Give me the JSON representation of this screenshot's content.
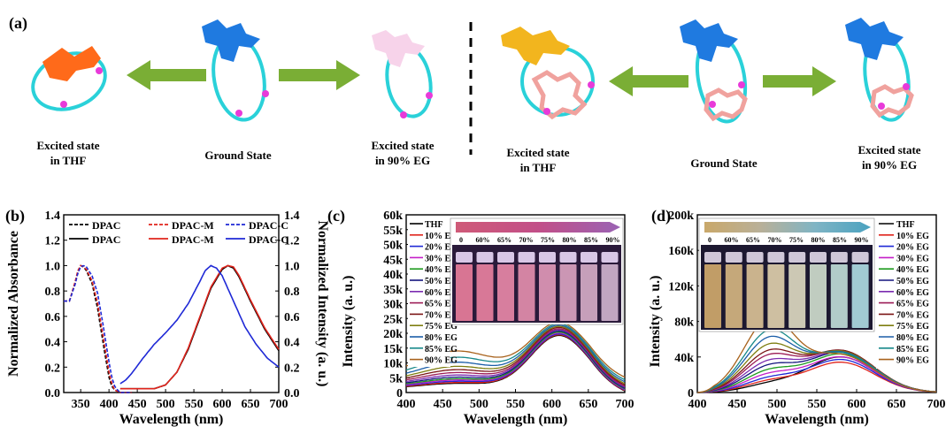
{
  "panel_a": {
    "label": "(a)",
    "captions_left": [
      "Excited state\nin THF",
      "Ground State",
      "Excited state\nin 90% EG"
    ],
    "captions_right": [
      "Excited state\nin THF",
      "Ground State",
      "Excited state\nin 90% EG"
    ]
  },
  "chart_data": [
    {
      "panel": "(b)",
      "type": "line",
      "xlabel": "Wavelength (nm)",
      "ylabel": "Normalized Absorbance",
      "y2label": "Normalized Intensity (a. u.)",
      "xlim": [
        320,
        700
      ],
      "ylim": [
        0,
        1.4
      ],
      "x_ticks": [
        350,
        400,
        450,
        500,
        550,
        600,
        650,
        700
      ],
      "y_ticks": [
        "0.0",
        "0.2",
        "0.4",
        "0.6",
        "0.8",
        "1.0",
        "1.2",
        "1.4"
      ],
      "legend_position": "top",
      "series": [
        {
          "name": "DPAC",
          "kind": "absorbance",
          "style": "dashed",
          "color": "#000000",
          "x": [
            320,
            330,
            340,
            345,
            350,
            355,
            360,
            370,
            380,
            390,
            400,
            405,
            410,
            420,
            440
          ],
          "y": [
            0.72,
            0.72,
            0.86,
            0.95,
            1.0,
            0.99,
            0.96,
            0.86,
            0.66,
            0.38,
            0.12,
            0.05,
            0.02,
            0.0,
            0.0
          ]
        },
        {
          "name": "DPAC-M",
          "kind": "absorbance",
          "style": "dashed",
          "color": "#e0241c",
          "x": [
            320,
            330,
            340,
            345,
            350,
            355,
            360,
            370,
            380,
            390,
            400,
            405,
            410,
            420,
            440
          ],
          "y": [
            0.72,
            0.72,
            0.87,
            0.96,
            1.0,
            0.99,
            0.97,
            0.88,
            0.7,
            0.43,
            0.16,
            0.07,
            0.02,
            0.0,
            0.0
          ]
        },
        {
          "name": "DPAC-C",
          "kind": "absorbance",
          "style": "dashed",
          "color": "#1f29d6",
          "x": [
            320,
            330,
            340,
            345,
            350,
            355,
            360,
            370,
            380,
            390,
            400,
            405,
            410,
            415,
            420,
            440
          ],
          "y": [
            0.72,
            0.72,
            0.85,
            0.94,
            0.99,
            1.0,
            0.99,
            0.92,
            0.78,
            0.52,
            0.24,
            0.12,
            0.05,
            0.02,
            0.0,
            0.0
          ]
        },
        {
          "name": "DPAC",
          "kind": "emission",
          "style": "solid",
          "color": "#000000",
          "x": [
            420,
            450,
            480,
            500,
            520,
            540,
            560,
            580,
            600,
            610,
            620,
            630,
            650,
            675,
            700
          ],
          "y": [
            0.03,
            0.03,
            0.03,
            0.06,
            0.16,
            0.34,
            0.58,
            0.82,
            0.97,
            1.0,
            0.98,
            0.91,
            0.72,
            0.5,
            0.33
          ]
        },
        {
          "name": "DPAC-M",
          "kind": "emission",
          "style": "solid",
          "color": "#e0241c",
          "x": [
            420,
            450,
            480,
            500,
            520,
            540,
            560,
            580,
            600,
            610,
            620,
            630,
            650,
            675,
            700
          ],
          "y": [
            0.03,
            0.03,
            0.03,
            0.06,
            0.16,
            0.35,
            0.59,
            0.83,
            0.98,
            1.0,
            0.99,
            0.92,
            0.73,
            0.51,
            0.34
          ]
        },
        {
          "name": "DPAC-C",
          "kind": "emission",
          "style": "solid",
          "color": "#1f29d6",
          "x": [
            420,
            430,
            440,
            460,
            480,
            500,
            520,
            540,
            560,
            570,
            580,
            590,
            600,
            620,
            640,
            660,
            680,
            700
          ],
          "y": [
            0.07,
            0.1,
            0.15,
            0.27,
            0.38,
            0.47,
            0.57,
            0.7,
            0.87,
            0.96,
            1.0,
            0.98,
            0.92,
            0.72,
            0.52,
            0.38,
            0.27,
            0.2
          ]
        }
      ]
    },
    {
      "panel": "(c)",
      "type": "line",
      "xlabel": "Wavelength (nm)",
      "ylabel": "Intensity (a. u.)",
      "xlim": [
        400,
        700
      ],
      "ylim": [
        0,
        60000
      ],
      "x_ticks": [
        400,
        450,
        500,
        550,
        600,
        650,
        700
      ],
      "y_ticks": [
        "0",
        "5k",
        "10k",
        "15k",
        "20k",
        "25k",
        "30k",
        "35k",
        "40k",
        "45k",
        "50k",
        "55k",
        "60k"
      ],
      "legend_position": "left",
      "inset": {
        "scale": [
          "0",
          "60%",
          "65%",
          "70%",
          "75%",
          "80%",
          "85%",
          "90%"
        ],
        "gradient": [
          "#cf5a78",
          "#c24f88",
          "#9a63b4"
        ],
        "vial_colors": [
          "#e27a98",
          "#e27d9c",
          "#e084a3",
          "#dc8aa9",
          "#d994b3",
          "#d49dba",
          "#cfa6c1",
          "#c9aec8"
        ]
      },
      "series": [
        {
          "name": "THF",
          "color": "#000000",
          "base": 2200,
          "peak": 18800
        },
        {
          "name": "10%  EG",
          "color": "#e0241c",
          "base": 2400,
          "peak": 19000
        },
        {
          "name": "20%  EG",
          "color": "#1f29d6",
          "base": 2700,
          "peak": 19200
        },
        {
          "name": "30%  EG",
          "color": "#c41ec8",
          "base": 3000,
          "peak": 19500
        },
        {
          "name": "40%  EG",
          "color": "#1f9b1f",
          "base": 3300,
          "peak": 19700
        },
        {
          "name": "50%  EG",
          "color": "#14147e",
          "base": 3700,
          "peak": 20000
        },
        {
          "name": "60%  EG",
          "color": "#7b2bb0",
          "base": 4200,
          "peak": 20300
        },
        {
          "name": "65%  EG",
          "color": "#9c1c56",
          "base": 4800,
          "peak": 20500
        },
        {
          "name": "70%  EG",
          "color": "#7b1616",
          "base": 5500,
          "peak": 20800
        },
        {
          "name": "75%  EG",
          "color": "#7e7e10",
          "base": 6300,
          "peak": 21000
        },
        {
          "name": "80%  EG",
          "color": "#1b5ea8",
          "base": 7300,
          "peak": 21200
        },
        {
          "name": "85%  EG",
          "color": "#17898a",
          "base": 8500,
          "peak": 21400
        },
        {
          "name": "90%  EG",
          "color": "#a8621c",
          "base": 10000,
          "peak": 21600
        }
      ]
    },
    {
      "panel": "(d)",
      "type": "line",
      "xlabel": "Wavelength (nm)",
      "ylabel": "Intensity (a. u.)",
      "xlim": [
        400,
        700
      ],
      "ylim": [
        0,
        200000
      ],
      "x_ticks": [
        400,
        450,
        500,
        550,
        600,
        650,
        700
      ],
      "y_ticks": [
        "0",
        "40k",
        "80k",
        "120k",
        "160k",
        "200k"
      ],
      "legend_position": "right",
      "inset": {
        "scale": [
          "0",
          "60%",
          "65%",
          "70%",
          "75%",
          "80%",
          "85%",
          "90%"
        ],
        "gradient": [
          "#c9a86a",
          "#b9b098",
          "#7fb4c4",
          "#4aa2c0"
        ],
        "vial_colors": [
          "#caa46a",
          "#cfb07e",
          "#d4bc92",
          "#d8c8a8",
          "#d6d2bc",
          "#c9d6c8",
          "#b9d6d2",
          "#a9d4dc"
        ]
      },
      "series": [
        {
          "name": "THF",
          "color": "#000000",
          "peak500": 8000,
          "peak580": 40000
        },
        {
          "name": "10%  EG",
          "color": "#e0241c",
          "peak500": 11000,
          "peak580": 34000
        },
        {
          "name": "20%  EG",
          "color": "#1f29d6",
          "peak500": 14000,
          "peak580": 37000
        },
        {
          "name": "30%  EG",
          "color": "#c41ec8",
          "peak500": 18000,
          "peak580": 40000
        },
        {
          "name": "40%  EG",
          "color": "#1f9b1f",
          "peak500": 22000,
          "peak580": 43000
        },
        {
          "name": "50%  EG",
          "color": "#14147e",
          "peak500": 27000,
          "peak580": 45000
        },
        {
          "name": "60%  EG",
          "color": "#7b2bb0",
          "peak500": 32000,
          "peak580": 46000
        },
        {
          "name": "65%  EG",
          "color": "#9c1c56",
          "peak500": 38000,
          "peak580": 47000
        },
        {
          "name": "70%  EG",
          "color": "#7b1616",
          "peak500": 43000,
          "peak580": 47000
        },
        {
          "name": "75%  EG",
          "color": "#7e7e10",
          "peak500": 50000,
          "peak580": 46000
        },
        {
          "name": "80%  EG",
          "color": "#1b5ea8",
          "peak500": 58000,
          "peak580": 45000
        },
        {
          "name": "85%  EG",
          "color": "#17898a",
          "peak500": 66000,
          "peak580": 44000
        },
        {
          "name": "90%  EG",
          "color": "#a8621c",
          "peak500": 80000,
          "peak580": 42000
        }
      ]
    }
  ]
}
